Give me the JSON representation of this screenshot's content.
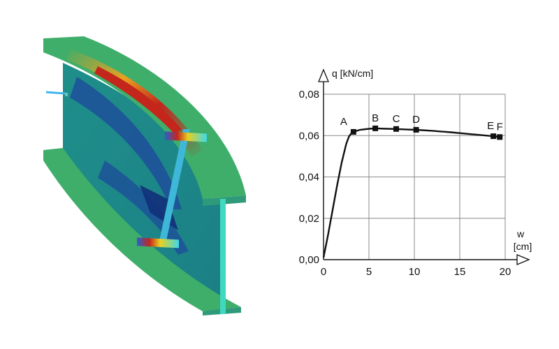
{
  "fea_model": {
    "axis_marker": "x",
    "colors": {
      "base": "#1f8f8a",
      "flange": "#3fae6a",
      "high_stress": "#c4261c",
      "mid_stress": "#e8a020",
      "low_stress": "#1d4f9a",
      "stiffener": "#3fb7d9"
    }
  },
  "chart_data": {
    "type": "line",
    "ylabel": "q [kN/cm]",
    "xlabel_lines": [
      "w",
      "[cm]"
    ],
    "xlim": [
      0,
      20
    ],
    "ylim": [
      0,
      0.08
    ],
    "x_ticks": [
      0,
      5,
      10,
      15,
      20
    ],
    "x_tick_labels": [
      "0",
      "5",
      "10",
      "15",
      "20"
    ],
    "y_ticks": [
      0,
      0.02,
      0.04,
      0.06,
      0.08
    ],
    "y_tick_labels": [
      "0,00",
      "0,02",
      "0,04",
      "0,06",
      "0,08"
    ],
    "grid": true,
    "curve": {
      "x": [
        0,
        0.5,
        1.0,
        1.5,
        2.0,
        2.5,
        2.8,
        3.0,
        3.3,
        4.0,
        5.0,
        5.7,
        7.0,
        8.0,
        9.0,
        10.2,
        12.0,
        14.0,
        16.0,
        18.0,
        18.7,
        19.0,
        19.6
      ],
      "y": [
        0.001,
        0.012,
        0.024,
        0.036,
        0.047,
        0.056,
        0.0595,
        0.0608,
        0.0618,
        0.0628,
        0.0633,
        0.0635,
        0.0633,
        0.0632,
        0.063,
        0.0628,
        0.0623,
        0.0616,
        0.0608,
        0.06,
        0.0597,
        0.0595,
        0.0592
      ]
    },
    "points": [
      {
        "label": "A",
        "x": 3.3,
        "y": 0.0618
      },
      {
        "label": "B",
        "x": 5.7,
        "y": 0.0635
      },
      {
        "label": "C",
        "x": 8.0,
        "y": 0.0632
      },
      {
        "label": "D",
        "x": 10.2,
        "y": 0.0628
      },
      {
        "label": "E",
        "x": 18.7,
        "y": 0.0597
      },
      {
        "label": "F",
        "x": 19.4,
        "y": 0.0593
      }
    ]
  }
}
